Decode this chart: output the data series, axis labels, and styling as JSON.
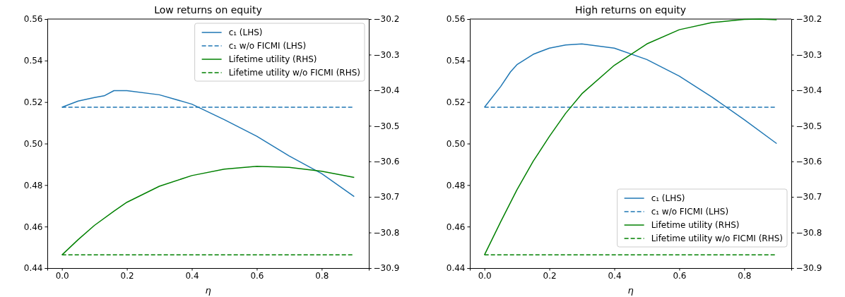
{
  "chart_data": [
    {
      "type": "line",
      "title": "Low returns on equity",
      "xlabel": "η",
      "legend": "top right",
      "grid": false,
      "xlim": [
        -0.045,
        0.945
      ],
      "xticks": [
        {
          "value": 0,
          "label": "0.0"
        },
        {
          "value": 0.2,
          "label": "0.2"
        },
        {
          "value": 0.4,
          "label": "0.4"
        },
        {
          "value": 0.6,
          "label": "0.6"
        },
        {
          "value": 0.8,
          "label": "0.8"
        }
      ],
      "ylim": [
        0.44,
        0.56
      ],
      "yticks": [
        {
          "value": 0.44,
          "label": "0.44"
        },
        {
          "value": 0.46,
          "label": "0.46"
        },
        {
          "value": 0.48,
          "label": "0.48"
        },
        {
          "value": 0.5,
          "label": "0.50"
        },
        {
          "value": 0.52,
          "label": "0.52"
        },
        {
          "value": 0.54,
          "label": "0.54"
        },
        {
          "value": 0.56,
          "label": "0.56"
        }
      ],
      "y2lim": [
        -30.9,
        -30.2
      ],
      "y2ticks": [
        {
          "value": -30.9,
          "label": "−30.9"
        },
        {
          "value": -30.8,
          "label": "−30.8"
        },
        {
          "value": -30.7,
          "label": "−30.7"
        },
        {
          "value": -30.6,
          "label": "−30.6"
        },
        {
          "value": -30.5,
          "label": "−30.5"
        },
        {
          "value": -30.4,
          "label": "−30.4"
        },
        {
          "value": -30.3,
          "label": "−30.3"
        },
        {
          "value": -30.2,
          "label": "−30.2"
        }
      ],
      "series": [
        {
          "name": "c₁ (LHS)",
          "color": "#1f77b4",
          "line_style": "solid",
          "x": [
            0,
            0.05,
            0.1,
            0.13,
            0.16,
            0.2,
            0.3,
            0.4,
            0.5,
            0.6,
            0.7,
            0.8,
            0.9
          ],
          "values": [
            0.5175,
            0.5205,
            0.5222,
            0.523,
            0.5255,
            0.5255,
            0.5235,
            0.519,
            0.5115,
            0.5035,
            0.494,
            0.4855,
            0.4745
          ]
        },
        {
          "name": "c₁ w/o FICMI (LHS)",
          "color": "#1f77b4",
          "line_style": "dashed",
          "x": [
            0,
            0.9
          ],
          "values": [
            0.5175,
            0.5175
          ]
        },
        {
          "name": "Lifetime utility (RHS)",
          "color": "#008000",
          "line_style": "solid",
          "axis": "y2",
          "x": [
            0,
            0.05,
            0.1,
            0.16,
            0.2,
            0.3,
            0.4,
            0.5,
            0.6,
            0.7,
            0.8,
            0.9
          ],
          "values": [
            -30.863,
            -30.82,
            -30.78,
            -30.74,
            -30.715,
            -30.67,
            -30.64,
            -30.622,
            -30.614,
            -30.617,
            -30.628,
            -30.645
          ]
        },
        {
          "name": "Lifetime utility w/o FICMI  (RHS)",
          "color": "#008000",
          "line_style": "dashed",
          "axis": "y2",
          "x": [
            0,
            0.9
          ],
          "values": [
            -30.863,
            -30.863
          ]
        }
      ]
    },
    {
      "type": "line",
      "title": "High returns on equity",
      "xlabel": "η",
      "legend": "bottom right",
      "grid": false,
      "xlim": [
        -0.045,
        0.945
      ],
      "xticks": [
        {
          "value": 0,
          "label": "0.0"
        },
        {
          "value": 0.2,
          "label": "0.2"
        },
        {
          "value": 0.4,
          "label": "0.4"
        },
        {
          "value": 0.6,
          "label": "0.6"
        },
        {
          "value": 0.8,
          "label": "0.8"
        }
      ],
      "ylim": [
        0.44,
        0.56
      ],
      "yticks": [
        {
          "value": 0.44,
          "label": "0.44"
        },
        {
          "value": 0.46,
          "label": "0.46"
        },
        {
          "value": 0.48,
          "label": "0.48"
        },
        {
          "value": 0.5,
          "label": "0.50"
        },
        {
          "value": 0.52,
          "label": "0.52"
        },
        {
          "value": 0.54,
          "label": "0.54"
        },
        {
          "value": 0.56,
          "label": "0.56"
        }
      ],
      "y2lim": [
        -30.9,
        -30.2
      ],
      "y2ticks": [
        {
          "value": -30.9,
          "label": "−30.9"
        },
        {
          "value": -30.8,
          "label": "−30.8"
        },
        {
          "value": -30.7,
          "label": "−30.7"
        },
        {
          "value": -30.6,
          "label": "−30.6"
        },
        {
          "value": -30.5,
          "label": "−30.5"
        },
        {
          "value": -30.4,
          "label": "−30.4"
        },
        {
          "value": -30.3,
          "label": "−30.3"
        },
        {
          "value": -30.2,
          "label": "−30.2"
        }
      ],
      "series": [
        {
          "name": "c₁ (LHS)",
          "color": "#1f77b4",
          "line_style": "solid",
          "x": [
            0,
            0.05,
            0.08,
            0.1,
            0.15,
            0.2,
            0.25,
            0.3,
            0.4,
            0.5,
            0.6,
            0.7,
            0.8,
            0.9
          ],
          "values": [
            0.5175,
            0.5275,
            0.5345,
            0.538,
            0.543,
            0.546,
            0.5475,
            0.548,
            0.546,
            0.5405,
            0.5325,
            0.5225,
            0.5115,
            0.5
          ]
        },
        {
          "name": "c₁ w/o FICMI (LHS)",
          "color": "#1f77b4",
          "line_style": "dashed",
          "x": [
            0,
            0.9
          ],
          "values": [
            0.5175,
            0.5175
          ]
        },
        {
          "name": "Lifetime utility (RHS)",
          "color": "#008000",
          "line_style": "solid",
          "axis": "y2",
          "x": [
            0,
            0.05,
            0.1,
            0.15,
            0.2,
            0.25,
            0.3,
            0.4,
            0.5,
            0.6,
            0.7,
            0.8,
            0.85,
            0.9
          ],
          "values": [
            -30.863,
            -30.77,
            -30.68,
            -30.6,
            -30.53,
            -30.465,
            -30.41,
            -30.33,
            -30.27,
            -30.23,
            -30.21,
            -30.201,
            -30.2,
            -30.202
          ]
        },
        {
          "name": "Lifetime utility w/o FICMI  (RHS)",
          "color": "#008000",
          "line_style": "dashed",
          "axis": "y2",
          "x": [
            0,
            0.9
          ],
          "values": [
            -30.863,
            -30.863
          ]
        }
      ]
    }
  ]
}
